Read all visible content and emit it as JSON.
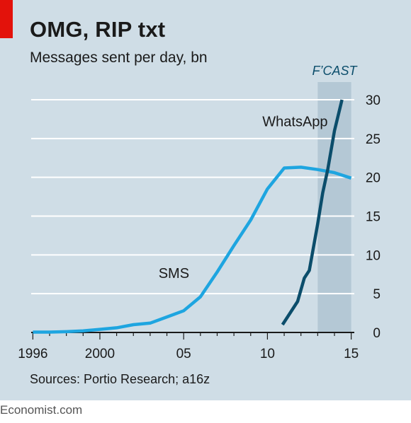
{
  "header": {
    "title": "OMG, RIP txt",
    "subtitle": "Messages sent per day, bn"
  },
  "source": "Sources: Portio Research; a16z",
  "footer": "Economist.com",
  "colors": {
    "background": "#cfdde6",
    "forecast_band": "#b4c8d5",
    "sms": "#1ea5e0",
    "whatsapp": "#0b4d6b",
    "brand_red": "#e3120b"
  },
  "chart_data": {
    "type": "line",
    "title": "OMG, RIP txt",
    "subtitle": "Messages sent per day, bn",
    "xlim": [
      1995.9,
      2015.1
    ],
    "ylim": [
      0,
      30
    ],
    "y_ticks": [
      0,
      5,
      10,
      15,
      20,
      25,
      30
    ],
    "y_axis_side": "right",
    "x_ticks": [
      {
        "value": 1996,
        "label": "1996"
      },
      {
        "value": 2000,
        "label": "2000"
      },
      {
        "value": 2005,
        "label": "05"
      },
      {
        "value": 2010,
        "label": "10"
      },
      {
        "value": 2015,
        "label": "15"
      }
    ],
    "grid": true,
    "forecast": {
      "label": "F’CAST",
      "from": 2013.0,
      "to": 2015.0
    },
    "series": [
      {
        "name": "SMS",
        "color": "#1ea5e0",
        "points": [
          [
            1996,
            0.05
          ],
          [
            1997,
            0.05
          ],
          [
            1998,
            0.1
          ],
          [
            1999,
            0.2
          ],
          [
            2000,
            0.4
          ],
          [
            2001,
            0.6
          ],
          [
            2002,
            1.0
          ],
          [
            2003,
            1.2
          ],
          [
            2004,
            2.0
          ],
          [
            2005,
            2.8
          ],
          [
            2006,
            4.6
          ],
          [
            2007,
            7.8
          ],
          [
            2008,
            11.2
          ],
          [
            2009,
            14.5
          ],
          [
            2010,
            18.5
          ],
          [
            2011,
            21.2
          ],
          [
            2012,
            21.3
          ],
          [
            2013,
            21.0
          ],
          [
            2014,
            20.6
          ],
          [
            2015,
            19.9
          ]
        ]
      },
      {
        "name": "WhatsApp",
        "color": "#0b4d6b",
        "points": [
          [
            2010.9,
            1.0
          ],
          [
            2011.8,
            4.0
          ],
          [
            2012.2,
            7.0
          ],
          [
            2012.5,
            8.0
          ],
          [
            2013.0,
            14.0
          ],
          [
            2013.3,
            18.0
          ],
          [
            2013.6,
            21.0
          ],
          [
            2014.0,
            26.0
          ],
          [
            2014.45,
            30.0
          ]
        ]
      }
    ]
  }
}
